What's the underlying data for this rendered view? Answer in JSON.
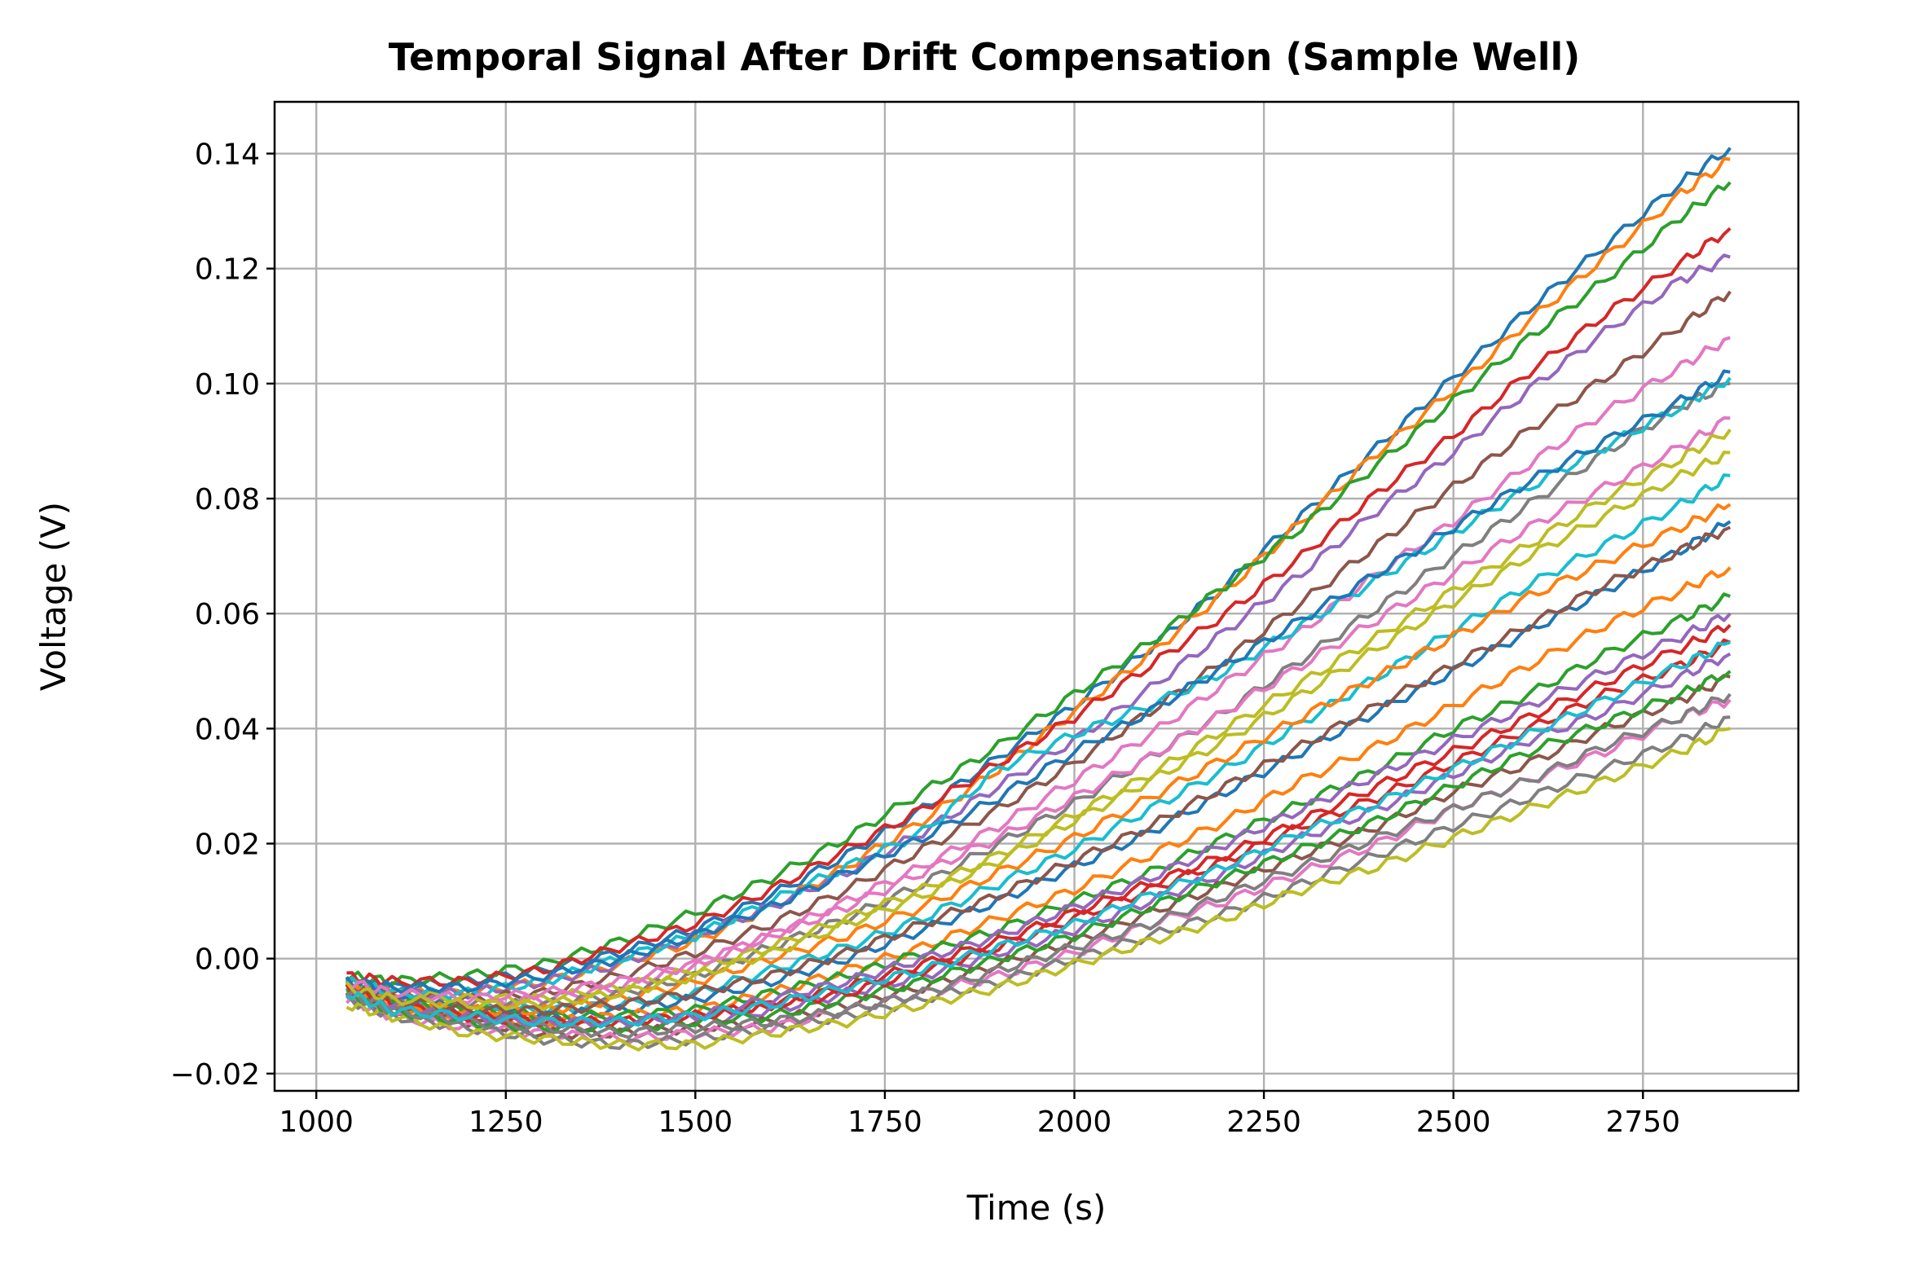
{
  "chart_data": {
    "type": "line",
    "title": "Temporal Signal After Drift Compensation (Sample Well)",
    "xlabel": "Time (s)",
    "ylabel": "Voltage (V)",
    "xlim": [
      945,
      2955
    ],
    "ylim": [
      -0.023,
      0.149
    ],
    "xticks": [
      1000,
      1250,
      1500,
      1750,
      2000,
      2250,
      2500,
      2750
    ],
    "xtick_labels": [
      "1000",
      "1250",
      "1500",
      "1750",
      "2000",
      "2250",
      "2500",
      "2750"
    ],
    "yticks": [
      -0.02,
      0.0,
      0.02,
      0.04,
      0.06,
      0.08,
      0.1,
      0.12,
      0.14
    ],
    "ytick_labels": [
      "−0.02",
      "0.00",
      "0.02",
      "0.04",
      "0.06",
      "0.08",
      "0.10",
      "0.12",
      "0.14"
    ],
    "grid": true,
    "legend": "none",
    "palette": [
      "#1f77b4",
      "#ff7f0e",
      "#2ca02c",
      "#d62728",
      "#9467bd",
      "#8c564b",
      "#e377c2",
      "#7f7f7f",
      "#bcbd22",
      "#17becf"
    ],
    "x": [
      1040,
      1100,
      1200,
      1300,
      1400,
      1500,
      1600,
      1700,
      1800,
      1900,
      2000,
      2100,
      2200,
      2300,
      2400,
      2500,
      2600,
      2700,
      2800,
      2865
    ],
    "series": [
      {
        "values": [
          -0.004,
          -0.005,
          -0.004,
          -0.002,
          0.001,
          0.005,
          0.011,
          0.018,
          0.026,
          0.035,
          0.044,
          0.054,
          0.065,
          0.077,
          0.089,
          0.101,
          0.113,
          0.124,
          0.135,
          0.141
        ]
      },
      {
        "values": [
          -0.004,
          -0.006,
          -0.006,
          -0.004,
          -0.001,
          0.003,
          0.009,
          0.016,
          0.024,
          0.033,
          0.043,
          0.053,
          0.064,
          0.076,
          0.088,
          0.099,
          0.111,
          0.122,
          0.133,
          0.139
        ]
      },
      {
        "values": [
          -0.003,
          -0.004,
          -0.003,
          -0.001,
          0.003,
          0.008,
          0.014,
          0.021,
          0.029,
          0.037,
          0.046,
          0.055,
          0.065,
          0.075,
          0.086,
          0.097,
          0.108,
          0.118,
          0.129,
          0.135
        ]
      },
      {
        "values": [
          -0.003,
          -0.004,
          -0.004,
          -0.002,
          0.002,
          0.006,
          0.012,
          0.019,
          0.026,
          0.034,
          0.042,
          0.051,
          0.06,
          0.07,
          0.081,
          0.091,
          0.102,
          0.112,
          0.121,
          0.127
        ]
      },
      {
        "values": [
          -0.004,
          -0.006,
          -0.006,
          -0.004,
          -0.001,
          0.004,
          0.009,
          0.015,
          0.022,
          0.03,
          0.038,
          0.047,
          0.057,
          0.067,
          0.078,
          0.088,
          0.099,
          0.109,
          0.118,
          0.122
        ]
      },
      {
        "values": [
          -0.004,
          -0.006,
          -0.007,
          -0.006,
          -0.003,
          0.001,
          0.006,
          0.012,
          0.019,
          0.026,
          0.034,
          0.043,
          0.052,
          0.062,
          0.072,
          0.082,
          0.092,
          0.101,
          0.11,
          0.116
        ]
      },
      {
        "values": [
          -0.005,
          -0.007,
          -0.008,
          -0.007,
          -0.005,
          -0.001,
          0.004,
          0.01,
          0.016,
          0.023,
          0.031,
          0.039,
          0.048,
          0.057,
          0.067,
          0.076,
          0.086,
          0.095,
          0.103,
          0.108
        ]
      },
      {
        "values": [
          -0.005,
          -0.007,
          -0.008,
          -0.008,
          -0.006,
          -0.003,
          0.002,
          0.007,
          0.013,
          0.02,
          0.027,
          0.035,
          0.043,
          0.052,
          0.061,
          0.07,
          0.079,
          0.088,
          0.096,
          0.1
        ]
      },
      {
        "values": [
          -0.004,
          -0.006,
          -0.007,
          -0.007,
          -0.005,
          -0.002,
          0.002,
          0.007,
          0.012,
          0.018,
          0.025,
          0.032,
          0.04,
          0.048,
          0.056,
          0.064,
          0.072,
          0.08,
          0.087,
          0.092
        ]
      },
      {
        "values": [
          -0.006,
          -0.008,
          -0.009,
          -0.009,
          -0.008,
          -0.006,
          -0.002,
          0.002,
          0.007,
          0.013,
          0.019,
          0.026,
          0.033,
          0.041,
          0.049,
          0.057,
          0.065,
          0.072,
          0.079,
          0.084
        ]
      },
      {
        "values": [
          -0.005,
          -0.007,
          -0.009,
          -0.01,
          -0.009,
          -0.007,
          -0.004,
          0.0,
          0.005,
          0.01,
          0.016,
          0.022,
          0.029,
          0.036,
          0.043,
          0.05,
          0.057,
          0.064,
          0.071,
          0.076
        ]
      },
      {
        "values": [
          -0.006,
          -0.008,
          -0.01,
          -0.011,
          -0.01,
          -0.009,
          -0.006,
          -0.002,
          0.002,
          0.007,
          0.012,
          0.018,
          0.024,
          0.031,
          0.037,
          0.044,
          0.051,
          0.058,
          0.064,
          0.068
        ]
      },
      {
        "values": [
          -0.005,
          -0.007,
          -0.009,
          -0.01,
          -0.01,
          -0.009,
          -0.006,
          -0.003,
          0.001,
          0.005,
          0.01,
          0.015,
          0.021,
          0.027,
          0.033,
          0.04,
          0.046,
          0.053,
          0.059,
          0.063
        ]
      },
      {
        "values": [
          -0.006,
          -0.008,
          -0.01,
          -0.011,
          -0.011,
          -0.01,
          -0.008,
          -0.005,
          -0.001,
          0.003,
          0.008,
          0.013,
          0.018,
          0.024,
          0.03,
          0.036,
          0.042,
          0.048,
          0.054,
          0.058
        ]
      },
      {
        "values": [
          -0.007,
          -0.009,
          -0.011,
          -0.012,
          -0.012,
          -0.011,
          -0.009,
          -0.006,
          -0.003,
          0.001,
          0.005,
          0.01,
          0.015,
          0.021,
          0.026,
          0.032,
          0.038,
          0.043,
          0.049,
          0.053
        ]
      },
      {
        "values": [
          -0.006,
          -0.009,
          -0.011,
          -0.013,
          -0.013,
          -0.012,
          -0.011,
          -0.008,
          -0.005,
          -0.001,
          0.003,
          0.008,
          0.013,
          0.018,
          0.023,
          0.029,
          0.034,
          0.04,
          0.045,
          0.049
        ]
      },
      {
        "values": [
          -0.007,
          -0.01,
          -0.012,
          -0.013,
          -0.014,
          -0.013,
          -0.012,
          -0.009,
          -0.006,
          -0.003,
          0.001,
          0.006,
          0.01,
          0.015,
          0.02,
          0.026,
          0.031,
          0.036,
          0.042,
          0.045
        ]
      },
      {
        "values": [
          -0.007,
          -0.01,
          -0.012,
          -0.014,
          -0.015,
          -0.014,
          -0.012,
          -0.01,
          -0.007,
          -0.004,
          0.0,
          0.004,
          0.008,
          0.013,
          0.018,
          0.023,
          0.028,
          0.033,
          0.038,
          0.042
        ]
      },
      {
        "values": [
          -0.008,
          -0.01,
          -0.013,
          -0.014,
          -0.015,
          -0.015,
          -0.013,
          -0.011,
          -0.008,
          -0.005,
          -0.001,
          0.003,
          0.007,
          0.012,
          0.016,
          0.021,
          0.026,
          0.031,
          0.036,
          0.04
        ]
      },
      {
        "values": [
          -0.004,
          -0.006,
          -0.006,
          -0.004,
          0.0,
          0.004,
          0.01,
          0.016,
          0.022,
          0.033,
          0.039,
          0.044,
          0.05,
          0.058,
          0.066,
          0.074,
          0.082,
          0.089,
          0.096,
          0.101
        ]
      },
      {
        "values": [
          -0.004,
          -0.005,
          -0.005,
          -0.003,
          0.0,
          0.004,
          0.009,
          0.015,
          0.021,
          0.028,
          0.036,
          0.043,
          0.051,
          0.059,
          0.067,
          0.075,
          0.083,
          0.09,
          0.097,
          0.102
        ]
      },
      {
        "values": [
          -0.005,
          -0.008,
          -0.009,
          -0.009,
          -0.007,
          -0.004,
          0.0,
          0.004,
          0.009,
          0.015,
          0.021,
          0.028,
          0.035,
          0.042,
          0.049,
          0.056,
          0.063,
          0.069,
          0.075,
          0.079
        ]
      },
      {
        "values": [
          -0.006,
          -0.009,
          -0.011,
          -0.012,
          -0.012,
          -0.011,
          -0.01,
          -0.007,
          -0.004,
          0.0,
          0.004,
          0.009,
          0.014,
          0.019,
          0.024,
          0.03,
          0.036,
          0.041,
          0.046,
          0.05
        ]
      },
      {
        "values": [
          -0.005,
          -0.008,
          -0.01,
          -0.011,
          -0.011,
          -0.01,
          -0.008,
          -0.006,
          -0.002,
          0.002,
          0.007,
          0.012,
          0.017,
          0.023,
          0.028,
          0.034,
          0.04,
          0.046,
          0.051,
          0.055
        ]
      },
      {
        "values": [
          -0.006,
          -0.008,
          -0.01,
          -0.011,
          -0.011,
          -0.01,
          -0.007,
          -0.004,
          0.0,
          0.004,
          0.009,
          0.014,
          0.02,
          0.026,
          0.032,
          0.038,
          0.044,
          0.05,
          0.056,
          0.06
        ]
      },
      {
        "values": [
          -0.005,
          -0.007,
          -0.009,
          -0.009,
          -0.008,
          -0.006,
          -0.003,
          0.001,
          0.006,
          0.011,
          0.017,
          0.023,
          0.03,
          0.037,
          0.044,
          0.051,
          0.058,
          0.065,
          0.071,
          0.075
        ]
      },
      {
        "values": [
          -0.004,
          -0.006,
          -0.007,
          -0.006,
          -0.004,
          -0.001,
          0.004,
          0.009,
          0.015,
          0.021,
          0.028,
          0.035,
          0.043,
          0.051,
          0.059,
          0.067,
          0.075,
          0.082,
          0.089,
          0.094
        ]
      },
      {
        "values": [
          -0.006,
          -0.009,
          -0.011,
          -0.012,
          -0.013,
          -0.012,
          -0.011,
          -0.009,
          -0.006,
          -0.002,
          0.002,
          0.006,
          0.011,
          0.016,
          0.021,
          0.026,
          0.031,
          0.037,
          0.042,
          0.046
        ]
      },
      {
        "values": [
          -0.005,
          -0.007,
          -0.008,
          -0.008,
          -0.006,
          -0.003,
          0.001,
          0.006,
          0.011,
          0.017,
          0.024,
          0.031,
          0.038,
          0.046,
          0.054,
          0.062,
          0.07,
          0.077,
          0.084,
          0.088
        ]
      },
      {
        "values": [
          -0.006,
          -0.009,
          -0.01,
          -0.011,
          -0.011,
          -0.01,
          -0.008,
          -0.005,
          -0.002,
          0.002,
          0.006,
          0.011,
          0.016,
          0.022,
          0.027,
          0.033,
          0.039,
          0.045,
          0.051,
          0.055
        ]
      }
    ]
  }
}
